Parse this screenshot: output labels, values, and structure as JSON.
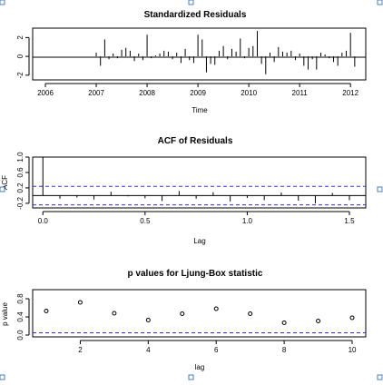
{
  "colors": {
    "background": "#ffffff",
    "axis": "#000000",
    "confidence_band": "#3333cc",
    "selection_handle": "#4a7ebb"
  },
  "chart_data": [
    {
      "type": "bar",
      "title": "Standardized Residuals",
      "xlabel": "Time",
      "ylabel": "",
      "xlim": [
        2005.75,
        2012.3
      ],
      "ylim": [
        -2.5,
        3.0
      ],
      "xticks": [
        "2006",
        "2007",
        "2008",
        "2009",
        "2010",
        "2011",
        "2012"
      ],
      "yticks": [
        "-2",
        "0",
        "2"
      ],
      "x": [
        2007.0,
        2007.083,
        2007.167,
        2007.25,
        2007.333,
        2007.417,
        2007.5,
        2007.583,
        2007.667,
        2007.75,
        2007.833,
        2007.917,
        2008.0,
        2008.083,
        2008.167,
        2008.25,
        2008.333,
        2008.417,
        2008.5,
        2008.583,
        2008.667,
        2008.75,
        2008.833,
        2008.917,
        2009.0,
        2009.083,
        2009.167,
        2009.25,
        2009.333,
        2009.417,
        2009.5,
        2009.583,
        2009.667,
        2009.75,
        2009.833,
        2009.917,
        2010.0,
        2010.083,
        2010.167,
        2010.25,
        2010.333,
        2010.417,
        2010.5,
        2010.583,
        2010.667,
        2010.75,
        2010.833,
        2010.917,
        2011.0,
        2011.083,
        2011.167,
        2011.25,
        2011.333,
        2011.417,
        2011.5,
        2011.583,
        2011.667,
        2011.75,
        2011.833,
        2011.917,
        2012.0,
        2012.083
      ],
      "values": [
        0.4,
        -1.0,
        1.8,
        -0.3,
        0.3,
        -0.2,
        0.7,
        0.9,
        0.6,
        -0.5,
        0.3,
        -0.4,
        2.3,
        -0.2,
        0.1,
        0.3,
        0.6,
        0.5,
        -0.3,
        0.4,
        -0.7,
        0.8,
        -0.4,
        -0.7,
        2.3,
        1.8,
        -1.7,
        -0.8,
        -0.9,
        0.6,
        1.1,
        -0.3,
        0.8,
        0.5,
        1.9,
        -0.2,
        0.9,
        1.1,
        2.7,
        -0.8,
        -1.9,
        0.4,
        -0.6,
        1.0,
        0.5,
        0.4,
        0.6,
        -0.4,
        0.3,
        -1.0,
        -1.4,
        -0.3,
        -1.4,
        0.4,
        0.2,
        -0.2,
        -0.6,
        -1.0,
        0.4,
        0.6,
        2.5,
        -1.1
      ],
      "grid": false
    },
    {
      "type": "bar",
      "title": "ACF of Residuals",
      "xlabel": "Lag",
      "ylabel": "ACF",
      "xlim": [
        -0.05,
        1.58
      ],
      "ylim": [
        -0.32,
        1.0
      ],
      "xticks": [
        "0.0",
        "0.5",
        "1.0",
        "1.5"
      ],
      "yticks": [
        "-0.2",
        "0.2",
        "0.6",
        "1.0"
      ],
      "x": [
        0.0,
        0.0833,
        0.1667,
        0.25,
        0.3333,
        0.4167,
        0.5,
        0.5833,
        0.6667,
        0.75,
        0.8333,
        0.9167,
        1.0,
        1.0833,
        1.1667,
        1.25,
        1.3333,
        1.4167,
        1.5
      ],
      "values": [
        1.0,
        -0.08,
        -0.05,
        -0.1,
        0.1,
        -0.02,
        -0.07,
        -0.14,
        0.12,
        -0.08,
        0.09,
        -0.15,
        -0.06,
        -0.12,
        0.08,
        -0.13,
        -0.2,
        0.07,
        -0.12
      ],
      "confidence_band": [
        -0.24,
        0.24
      ],
      "grid": false
    },
    {
      "type": "scatter",
      "title": "p values for Ljung-Box statistic",
      "xlabel": "lag",
      "ylabel": "p value",
      "xlim": [
        0.6,
        10.4
      ],
      "ylim": [
        -0.04,
        1.0
      ],
      "xticks": [
        "2",
        "4",
        "6",
        "8",
        "10"
      ],
      "yticks": [
        "0.0",
        "0.4",
        "0.8"
      ],
      "x": [
        1,
        2,
        3,
        4,
        5,
        6,
        7,
        8,
        9,
        10
      ],
      "values": [
        0.53,
        0.72,
        0.48,
        0.33,
        0.47,
        0.58,
        0.47,
        0.27,
        0.31,
        0.38
      ],
      "reference_line": 0.05,
      "grid": false
    }
  ]
}
